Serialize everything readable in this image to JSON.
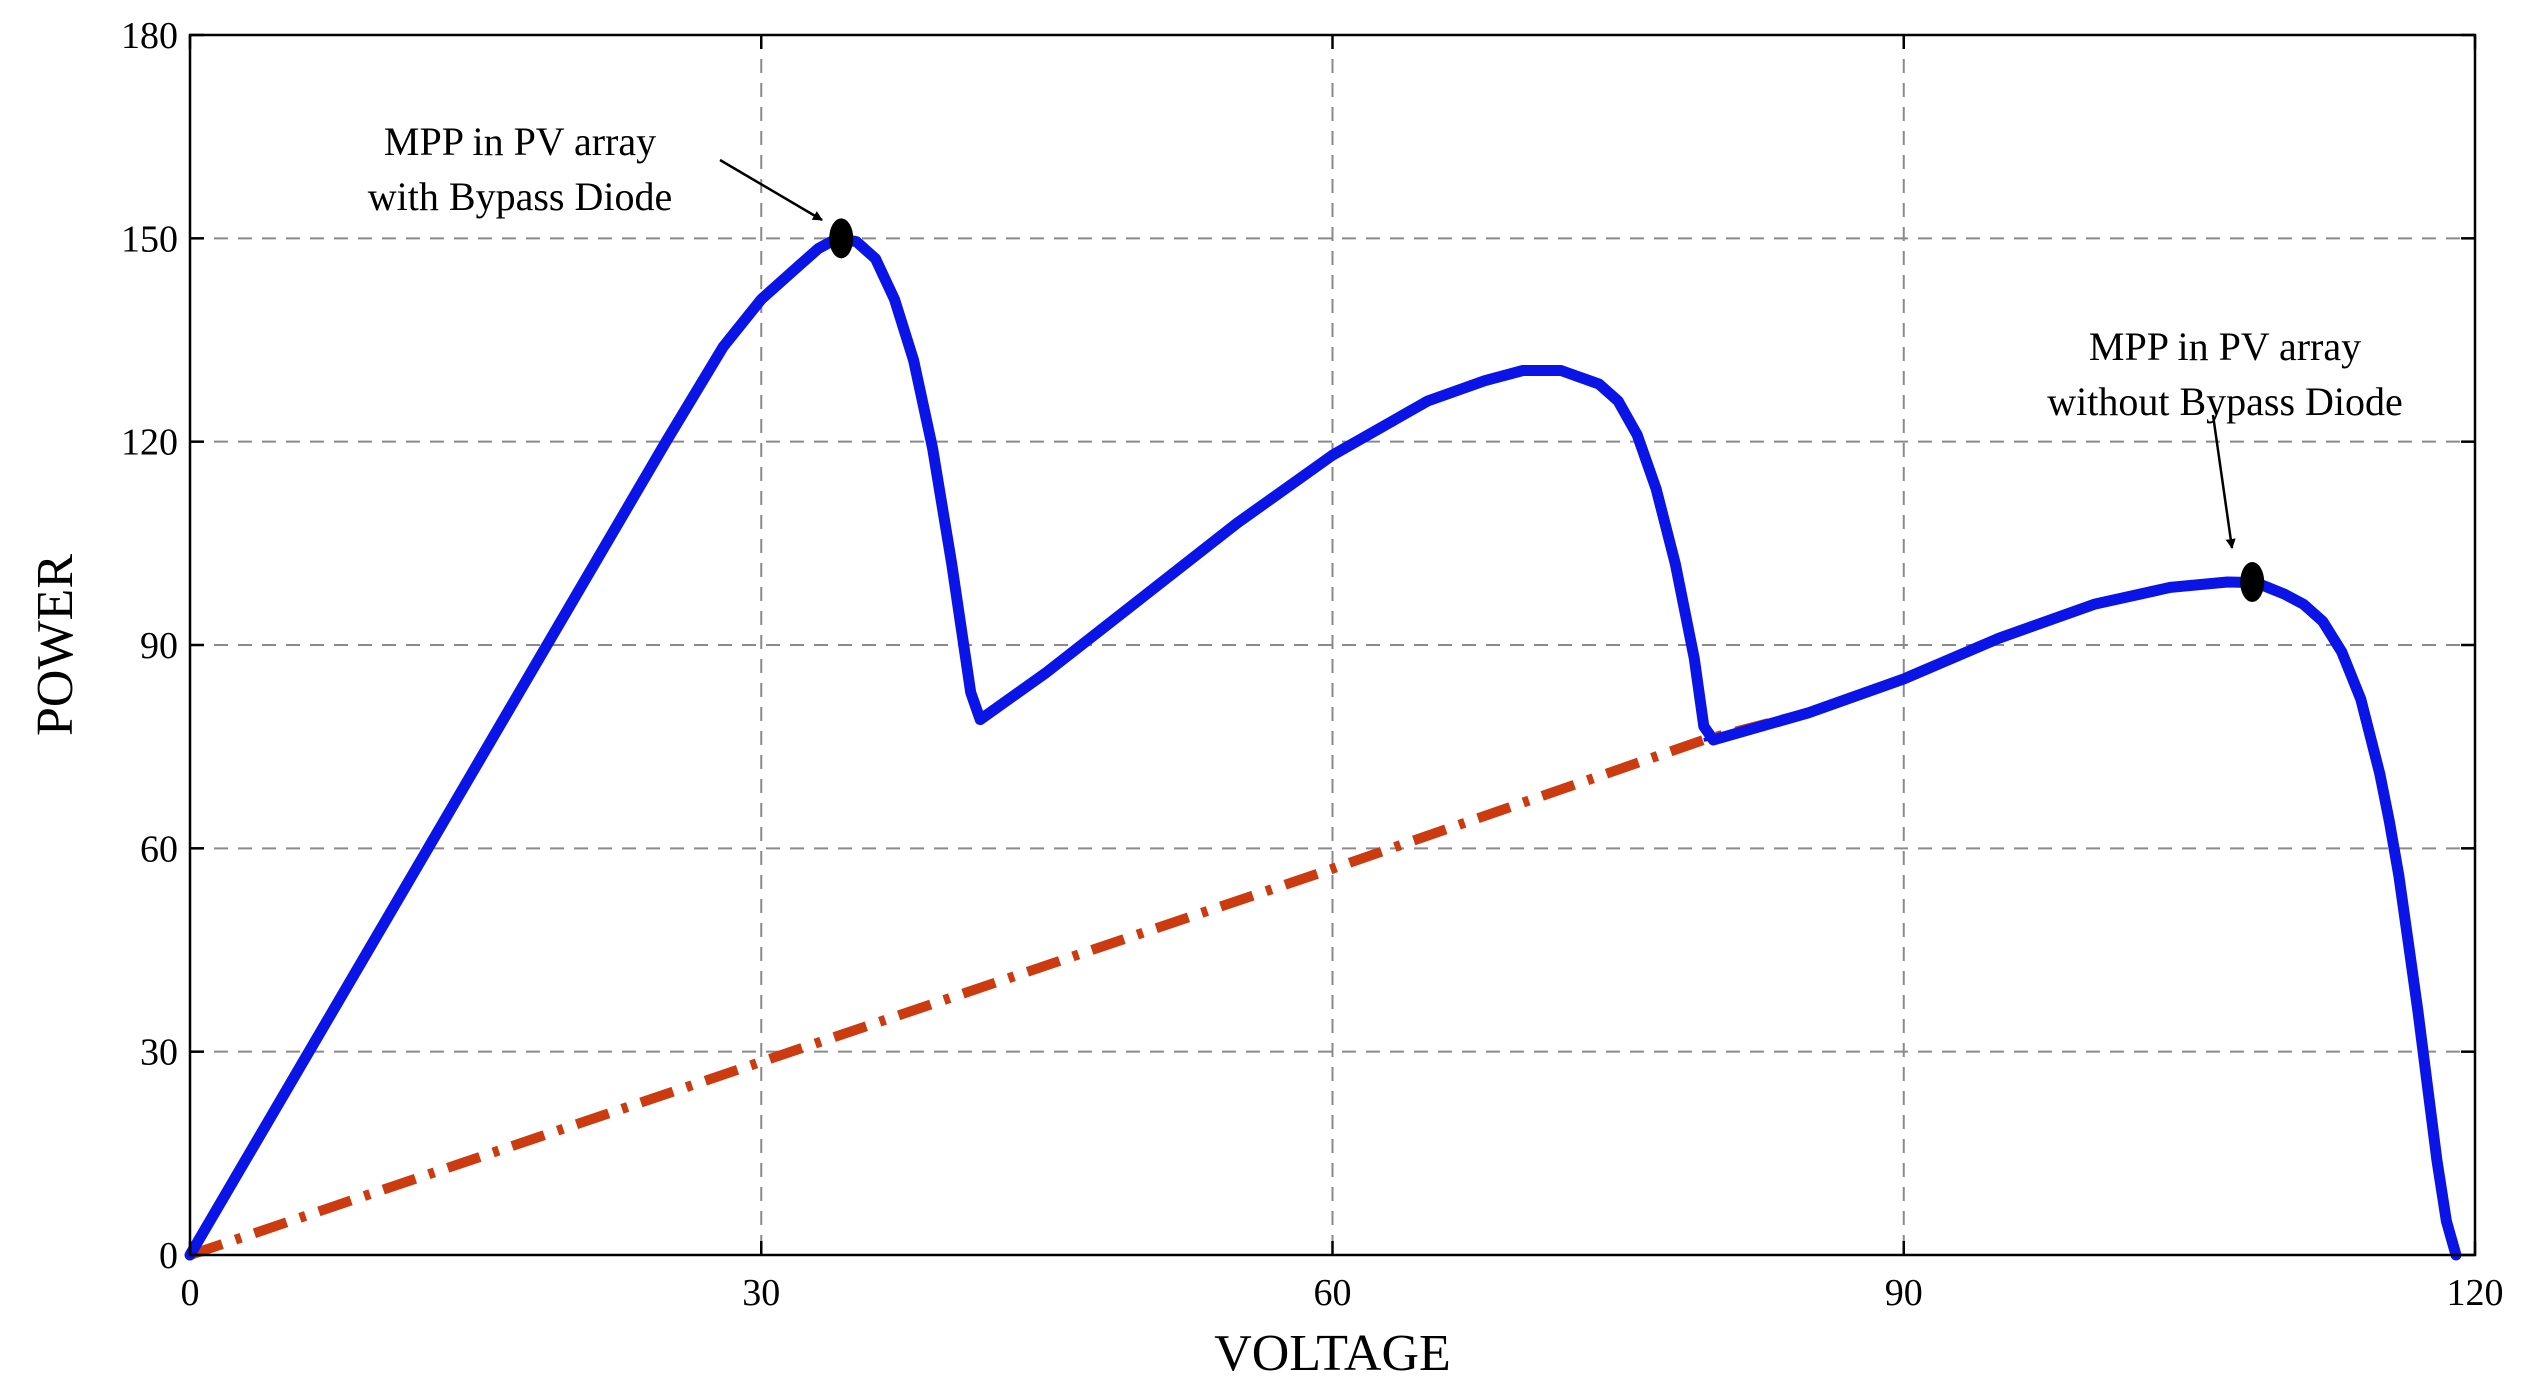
{
  "chart_data": {
    "type": "line",
    "xlabel": "VOLTAGE",
    "ylabel": "POWER",
    "xlim": [
      0,
      120
    ],
    "ylim": [
      0,
      180
    ],
    "xticks": [
      0,
      30,
      60,
      90,
      120
    ],
    "yticks": [
      0,
      30,
      60,
      90,
      120,
      150,
      180
    ],
    "grid": true,
    "series": [
      {
        "color": "#0a14e6",
        "style": "solid",
        "x": [
          0,
          5,
          10,
          15,
          20,
          25,
          28,
          30,
          32,
          33,
          34,
          35,
          36,
          37,
          38,
          39,
          40,
          41,
          41.5,
          45,
          50,
          55,
          60,
          65,
          68,
          70,
          72,
          74,
          75,
          76,
          77,
          78,
          79,
          79.5,
          80,
          85,
          90,
          95,
          100,
          104,
          107,
          108.5,
          110,
          111,
          112,
          113,
          114,
          115,
          115.5,
          116,
          116.5,
          117,
          117.5,
          118,
          118.5,
          119
        ],
        "y": [
          0,
          24,
          48,
          72,
          96,
          120,
          134,
          141,
          146,
          148.5,
          150,
          149.5,
          147,
          141,
          132,
          119,
          102,
          83,
          79,
          86,
          97,
          108,
          118,
          126,
          129,
          130.5,
          130.5,
          128.5,
          126,
          121,
          113,
          102,
          88,
          78,
          76,
          80,
          85,
          91,
          96,
          98.5,
          99.3,
          99.2,
          97.5,
          96,
          93.5,
          89,
          82,
          71,
          64,
          56,
          46,
          36,
          25,
          14,
          5,
          0
        ]
      },
      {
        "color": "#cc3a10",
        "style": "dash-dot",
        "x": [
          0,
          20,
          40,
          60,
          79.5,
          85,
          90,
          95,
          100,
          104,
          107,
          108.5,
          110,
          111,
          112,
          113,
          114,
          115,
          115.5,
          116,
          116.5,
          117,
          117.5,
          118,
          118.5,
          119
        ],
        "y": [
          0,
          19,
          38,
          57,
          76,
          80,
          85,
          91,
          96,
          98.5,
          99.3,
          99.2,
          97.5,
          96,
          93.5,
          89,
          82,
          71,
          64,
          56,
          46,
          36,
          25,
          14,
          5,
          0
        ]
      }
    ],
    "points": [
      {
        "x": 34.2,
        "y": 150
      },
      {
        "x": 108.3,
        "y": 99.3
      }
    ],
    "annotations": [
      {
        "lines": [
          "MPP in PV array",
          "with Bypass Diode"
        ],
        "x": 34.2,
        "y": 150
      },
      {
        "lines": [
          "MPP in PV array",
          "without Bypass Diode"
        ],
        "x": 108.3,
        "y": 99.3
      }
    ]
  }
}
